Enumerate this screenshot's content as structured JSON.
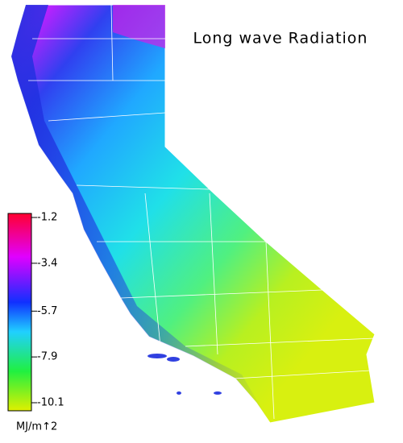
{
  "title": "Long wave Radiation",
  "legend": {
    "unit": "MJ/m↑2",
    "range": [
      -1.2,
      -10.1
    ],
    "ticks": [
      -1.2,
      -3.4,
      -5.7,
      -7.9,
      -10.1
    ]
  }
}
